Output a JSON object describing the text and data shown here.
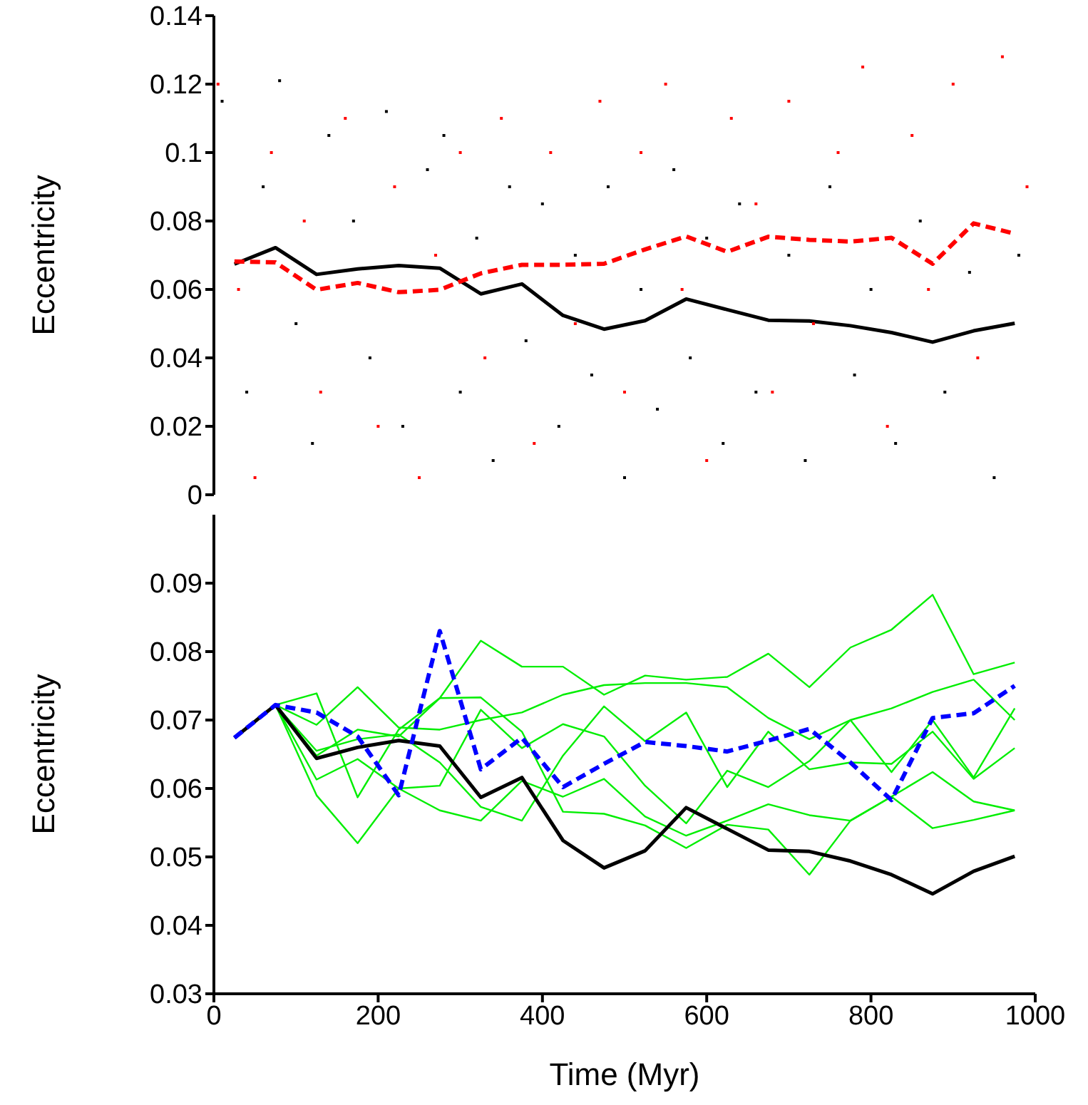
{
  "chart_data": [
    {
      "type": "line",
      "ylabel": "Eccentricity",
      "xlim": [
        0,
        1000
      ],
      "xticks": [
        0,
        200,
        400,
        600,
        800,
        1000
      ],
      "ylim": [
        0,
        0.14
      ],
      "yticks": [
        0,
        0.02,
        0.04,
        0.06,
        0.08,
        0.1,
        0.12,
        0.14
      ],
      "tick_labels": "y",
      "series": [
        {
          "type": "scatter",
          "color": "#000000",
          "marker": "square",
          "x": [
            10,
            40,
            60,
            80,
            100,
            120,
            140,
            170,
            190,
            210,
            230,
            260,
            280,
            300,
            320,
            340,
            360,
            380,
            400,
            420,
            440,
            460,
            480,
            500,
            520,
            540,
            560,
            580,
            600,
            620,
            640,
            660,
            700,
            720,
            750,
            780,
            800,
            830,
            860,
            890,
            920,
            950,
            980
          ],
          "values": [
            0.115,
            0.03,
            0.09,
            0.121,
            0.05,
            0.015,
            0.105,
            0.08,
            0.04,
            0.112,
            0.02,
            0.095,
            0.105,
            0.03,
            0.075,
            0.01,
            0.09,
            0.045,
            0.085,
            0.02,
            0.07,
            0.035,
            0.09,
            0.005,
            0.06,
            0.025,
            0.095,
            0.04,
            0.075,
            0.015,
            0.085,
            0.03,
            0.07,
            0.01,
            0.09,
            0.035,
            0.06,
            0.015,
            0.08,
            0.03,
            0.065,
            0.005,
            0.07
          ]
        },
        {
          "type": "scatter",
          "color": "#ff0000",
          "marker": "square",
          "x": [
            5,
            30,
            50,
            70,
            110,
            130,
            160,
            200,
            220,
            250,
            270,
            300,
            330,
            350,
            390,
            410,
            440,
            470,
            500,
            520,
            550,
            570,
            600,
            630,
            660,
            680,
            700,
            730,
            760,
            790,
            820,
            850,
            870,
            900,
            930,
            960,
            990
          ],
          "values": [
            0.12,
            0.06,
            0.005,
            0.1,
            0.08,
            0.03,
            0.11,
            0.02,
            0.09,
            0.005,
            0.07,
            0.1,
            0.04,
            0.11,
            0.015,
            0.1,
            0.05,
            0.115,
            0.03,
            0.1,
            0.12,
            0.06,
            0.01,
            0.11,
            0.085,
            0.03,
            0.115,
            0.05,
            0.1,
            0.125,
            0.02,
            0.105,
            0.06,
            0.12,
            0.04,
            0.128,
            0.09
          ]
        },
        {
          "type": "line",
          "color": "#000000",
          "marker": "none",
          "line_style": "solid",
          "x": [
            25,
            75,
            125,
            175,
            225,
            275,
            325,
            375,
            425,
            475,
            525,
            575,
            625,
            675,
            725,
            775,
            825,
            875,
            925,
            975
          ],
          "values": [
            0.0674,
            0.0722,
            0.0644,
            0.066,
            0.067,
            0.0662,
            0.0587,
            0.0616,
            0.0524,
            0.0484,
            0.0509,
            0.0572,
            0.0541,
            0.051,
            0.0508,
            0.0494,
            0.0474,
            0.0446,
            0.0479,
            0.0501
          ]
        },
        {
          "type": "line",
          "color": "#ff0000",
          "marker": "none",
          "line_style": "dashed",
          "x": [
            25,
            75,
            125,
            175,
            225,
            275,
            325,
            375,
            425,
            475,
            525,
            575,
            625,
            675,
            725,
            775,
            825,
            875,
            925,
            975
          ],
          "values": [
            0.0682,
            0.0679,
            0.0599,
            0.0619,
            0.0592,
            0.0599,
            0.0647,
            0.0672,
            0.0672,
            0.0675,
            0.0717,
            0.0755,
            0.071,
            0.0754,
            0.0745,
            0.074,
            0.0751,
            0.0675,
            0.0793,
            0.0763
          ]
        }
      ]
    },
    {
      "type": "line",
      "xlabel": "Time (Myr)",
      "ylabel": "Eccentricity",
      "xlim": [
        0,
        1000
      ],
      "xticks": [
        0,
        200,
        400,
        600,
        800,
        1000
      ],
      "ylim": [
        0.03,
        0.1
      ],
      "yticks": [
        0.03,
        0.04,
        0.05,
        0.06,
        0.07,
        0.08,
        0.09
      ],
      "series": [
        {
          "color": "#00ee00",
          "marker": "none",
          "line_style": "solid",
          "x": [
            75,
            125,
            175,
            225,
            275,
            325,
            375,
            425,
            475,
            525,
            575,
            625,
            675,
            725,
            775,
            825,
            875,
            925,
            975
          ],
          "values": [
            0.0722,
            0.0739,
            0.0587,
            0.0686,
            0.0732,
            0.0816,
            0.0778,
            0.0778,
            0.0737,
            0.0765,
            0.0759,
            0.0763,
            0.0797,
            0.0748,
            0.0806,
            0.0832,
            0.0883,
            0.0767,
            0.0784
          ]
        },
        {
          "color": "#00ee00",
          "marker": "none",
          "line_style": "solid",
          "x": [
            75,
            125,
            175,
            225,
            275,
            325,
            375,
            425,
            475,
            525,
            575,
            625,
            675,
            725,
            775,
            825,
            875,
            925,
            975
          ],
          "values": [
            0.0722,
            0.0693,
            0.0748,
            0.0689,
            0.0686,
            0.07,
            0.0711,
            0.0737,
            0.0751,
            0.0754,
            0.0754,
            0.0748,
            0.0703,
            0.0672,
            0.07,
            0.0717,
            0.0741,
            0.0759,
            0.07
          ]
        },
        {
          "color": "#00ee00",
          "marker": "none",
          "line_style": "solid",
          "x": [
            75,
            125,
            175,
            225,
            275,
            325,
            375,
            425,
            475,
            525,
            575,
            625,
            675,
            725,
            775,
            825,
            875,
            925,
            975
          ],
          "values": [
            0.0722,
            0.0655,
            0.0672,
            0.0679,
            0.0638,
            0.0573,
            0.0553,
            0.0648,
            0.072,
            0.0669,
            0.0711,
            0.0602,
            0.0683,
            0.0628,
            0.0638,
            0.0636,
            0.0683,
            0.0614,
            0.0659
          ]
        },
        {
          "color": "#00ee00",
          "marker": "none",
          "line_style": "solid",
          "x": [
            75,
            125,
            175,
            225,
            275,
            325,
            375,
            425,
            475,
            525,
            575,
            625,
            675,
            725,
            775,
            825,
            875,
            925,
            975
          ],
          "values": [
            0.0722,
            0.0613,
            0.0643,
            0.06,
            0.0604,
            0.0715,
            0.0659,
            0.0694,
            0.0676,
            0.0604,
            0.0549,
            0.0626,
            0.0602,
            0.064,
            0.07,
            0.0624,
            0.07,
            0.0616,
            0.0717
          ]
        },
        {
          "color": "#00ee00",
          "marker": "none",
          "line_style": "solid",
          "x": [
            75,
            125,
            175,
            225,
            275,
            325,
            375,
            425,
            475,
            525,
            575,
            625,
            675,
            725,
            775,
            825,
            875,
            925,
            975
          ],
          "values": [
            0.0722,
            0.059,
            0.052,
            0.06,
            0.0568,
            0.0553,
            0.0611,
            0.0588,
            0.0614,
            0.0559,
            0.0531,
            0.0553,
            0.0577,
            0.0561,
            0.0553,
            0.0588,
            0.0624,
            0.0581,
            0.0568
          ]
        },
        {
          "color": "#00ee00",
          "marker": "none",
          "line_style": "solid",
          "x": [
            75,
            125,
            175,
            225,
            275,
            325,
            375,
            425,
            475,
            525,
            575,
            625,
            675,
            725,
            775,
            825,
            875,
            925,
            975
          ],
          "values": [
            0.0722,
            0.0648,
            0.0686,
            0.0676,
            0.0732,
            0.0733,
            0.0683,
            0.0566,
            0.0563,
            0.0546,
            0.0513,
            0.0547,
            0.054,
            0.0474,
            0.0553,
            0.0588,
            0.0542,
            0.0554,
            0.0568
          ]
        },
        {
          "color": "#000000",
          "marker": "none",
          "line_style": "solid",
          "x": [
            25,
            75,
            125,
            175,
            225,
            275,
            325,
            375,
            425,
            475,
            525,
            575,
            625,
            675,
            725,
            775,
            825,
            875,
            925,
            975
          ],
          "values": [
            0.0674,
            0.0722,
            0.0644,
            0.066,
            0.067,
            0.0662,
            0.0587,
            0.0616,
            0.0524,
            0.0484,
            0.0509,
            0.0572,
            0.0541,
            0.051,
            0.0508,
            0.0494,
            0.0474,
            0.0446,
            0.0479,
            0.0501
          ]
        },
        {
          "color": "#0000ff",
          "marker": "none",
          "line_style": "dashed",
          "x": [
            25,
            75,
            125,
            175,
            225,
            275,
            325,
            375,
            425,
            475,
            525,
            575,
            625,
            675,
            725,
            775,
            825,
            875,
            925,
            975
          ],
          "values": [
            0.0674,
            0.0722,
            0.0711,
            0.0676,
            0.059,
            0.083,
            0.0628,
            0.0674,
            0.0602,
            0.0636,
            0.0668,
            0.0662,
            0.0654,
            0.067,
            0.0687,
            0.0638,
            0.0583,
            0.0703,
            0.071,
            0.075
          ]
        }
      ]
    }
  ]
}
